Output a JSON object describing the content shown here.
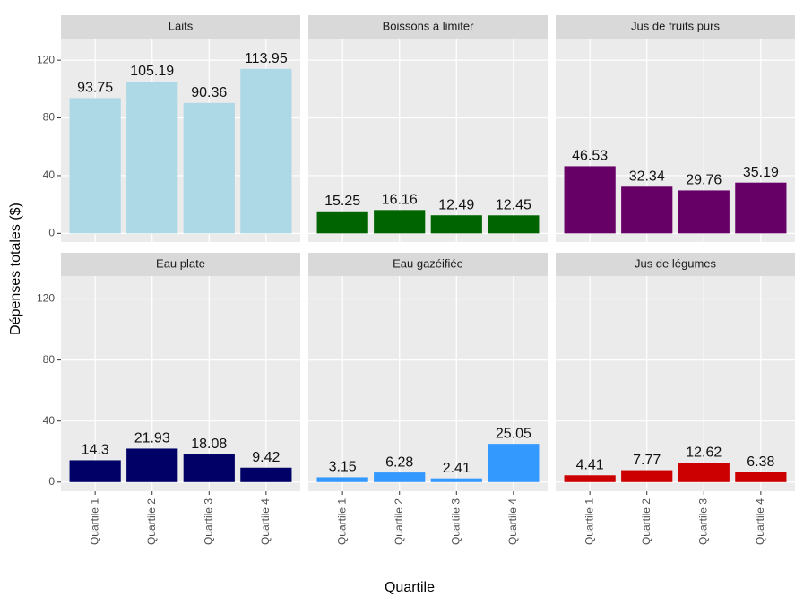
{
  "axis_labels": {
    "x": "Quartile",
    "y": "Dépenses totales ($)"
  },
  "chart_data": [
    {
      "type": "bar",
      "title": "Laits",
      "categories": [
        "Quartile 1",
        "Quartile 2",
        "Quartile 3",
        "Quartile 4"
      ],
      "values": [
        93.75,
        105.19,
        90.36,
        113.95
      ],
      "color": "#add8e6",
      "ylim": [
        -6,
        135
      ],
      "yticks": [
        0,
        40,
        80,
        120
      ],
      "grid": true
    },
    {
      "type": "bar",
      "title": "Boissons à limiter",
      "categories": [
        "Quartile 1",
        "Quartile 2",
        "Quartile 3",
        "Quartile 4"
      ],
      "values": [
        15.25,
        16.16,
        12.49,
        12.45
      ],
      "color": "#006400",
      "ylim": [
        -6,
        135
      ],
      "yticks": [
        0,
        40,
        80,
        120
      ],
      "grid": true
    },
    {
      "type": "bar",
      "title": "Jus de fruits purs",
      "categories": [
        "Quartile 1",
        "Quartile 2",
        "Quartile 3",
        "Quartile 4"
      ],
      "values": [
        46.53,
        32.34,
        29.76,
        35.19
      ],
      "color": "#660066",
      "ylim": [
        -6,
        135
      ],
      "yticks": [
        0,
        40,
        80,
        120
      ],
      "grid": true
    },
    {
      "type": "bar",
      "title": "Eau plate",
      "categories": [
        "Quartile 1",
        "Quartile 2",
        "Quartile 3",
        "Quartile 4"
      ],
      "values": [
        14.3,
        21.93,
        18.08,
        9.42
      ],
      "color": "#000066",
      "ylim": [
        -6,
        135
      ],
      "yticks": [
        0,
        40,
        80,
        120
      ],
      "grid": true
    },
    {
      "type": "bar",
      "title": "Eau gazéifiée",
      "categories": [
        "Quartile 1",
        "Quartile 2",
        "Quartile 3",
        "Quartile 4"
      ],
      "values": [
        3.15,
        6.28,
        2.41,
        25.05
      ],
      "color": "#3399ff",
      "ylim": [
        -6,
        135
      ],
      "yticks": [
        0,
        40,
        80,
        120
      ],
      "grid": true
    },
    {
      "type": "bar",
      "title": "Jus de légumes",
      "categories": [
        "Quartile 1",
        "Quartile 2",
        "Quartile 3",
        "Quartile 4"
      ],
      "values": [
        4.41,
        7.77,
        12.62,
        6.38
      ],
      "color": "#cc0000",
      "ylim": [
        -6,
        135
      ],
      "yticks": [
        0,
        40,
        80,
        120
      ],
      "grid": true
    }
  ]
}
